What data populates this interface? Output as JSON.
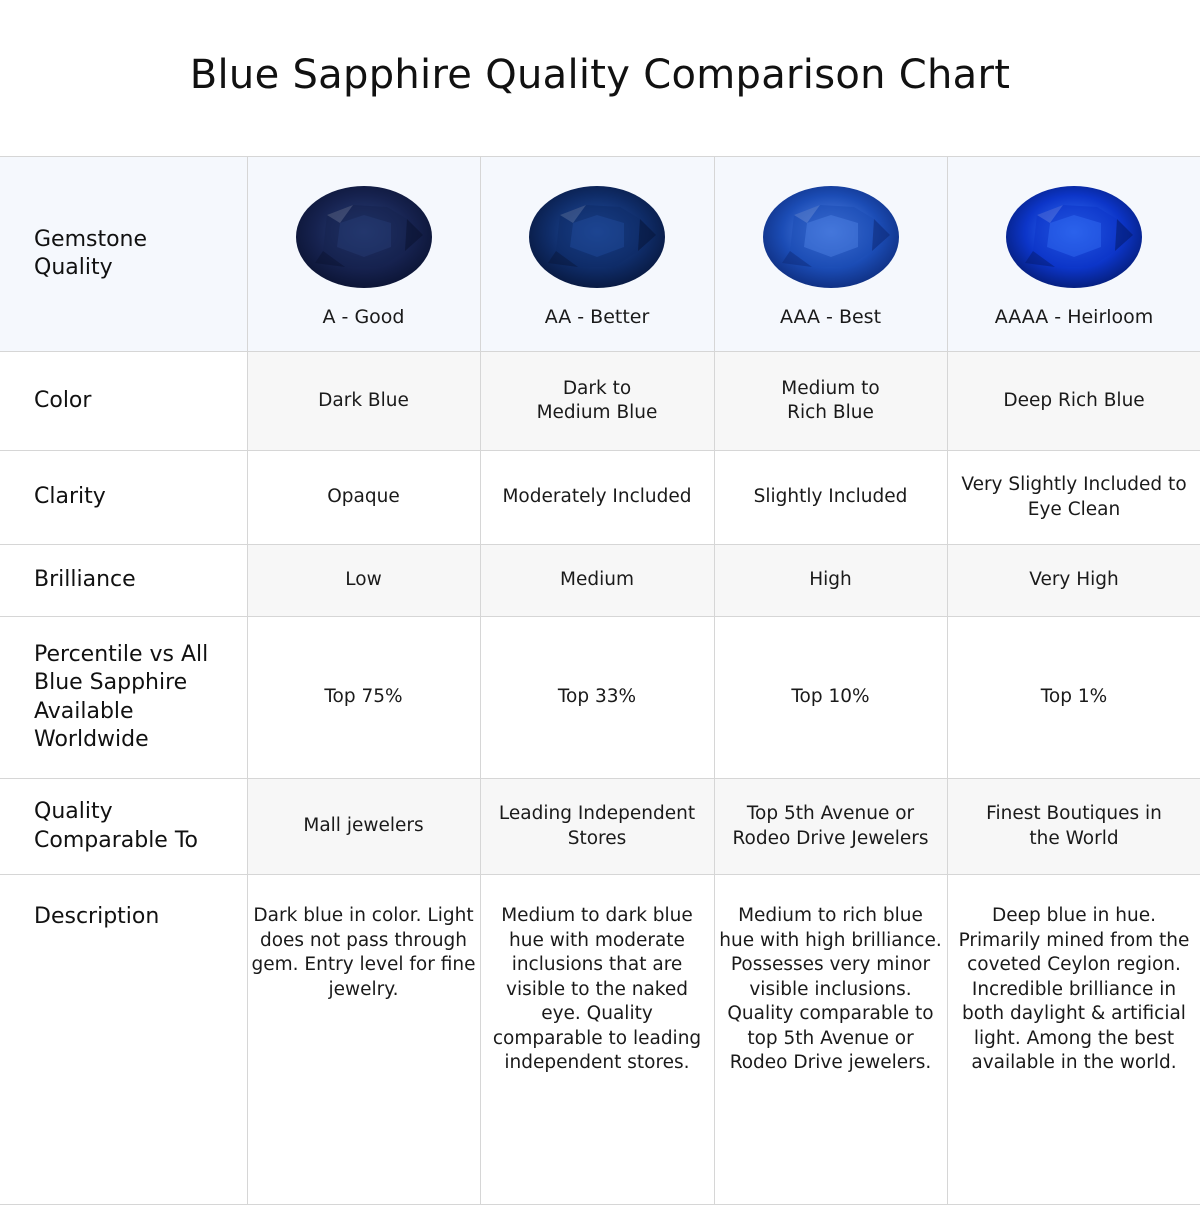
{
  "title": "Blue Sapphire Quality Comparison Chart",
  "rows": {
    "quality": {
      "label": "Gemstone Quality",
      "values": [
        "A - Good",
        "AA - Better",
        "AAA - Best",
        "AAAA - Heirloom"
      ]
    },
    "color": {
      "label": "Color",
      "values": [
        "Dark Blue",
        "Dark to Medium Blue",
        "Medium to Rich Blue",
        "Deep Rich Blue"
      ]
    },
    "clarity": {
      "label": "Clarity",
      "values": [
        "Opaque",
        "Moderately Included",
        "Slightly Included",
        "Very Slightly Included to Eye Clean"
      ]
    },
    "brilliance": {
      "label": "Brilliance",
      "values": [
        "Low",
        "Medium",
        "High",
        "Very High"
      ]
    },
    "percentile": {
      "label": "Percentile vs All Blue Sapphire Available Worldwide",
      "values": [
        "Top 75%",
        "Top 33%",
        "Top 10%",
        "Top 1%"
      ]
    },
    "comparable": {
      "label": "Quality Comparable To",
      "values": [
        "Mall jewelers",
        "Leading Independent Stores",
        "Top 5th Avenue or Rodeo Drive Jewelers",
        "Finest Boutiques in the World"
      ]
    },
    "description": {
      "label": "Description",
      "values": [
        "Dark blue in color. Light does not pass through gem. Entry level for fine jewelry.",
        "Medium to dark blue hue with moderate inclusions that are visible to the naked eye. Quality comparable to leading independent stores.",
        "Medium to rich blue hue with high brilliance. Possesses very minor visible inclusions. Quality comparable to top 5th Avenue or Rodeo Drive jewelers.",
        "Deep blue in hue. Primarily mined from the coveted Ceylon region. Incredible brilliance in both daylight & artificial light. Among the best available in the world."
      ]
    }
  },
  "gem_colors": [
    {
      "base": "#16224f",
      "light": "#2b437f",
      "dark": "#0a1230"
    },
    {
      "base": "#0f2c68",
      "light": "#2453a8",
      "dark": "#07163a"
    },
    {
      "base": "#1b4cb5",
      "light": "#5c8ef0",
      "dark": "#0d2a78"
    },
    {
      "base": "#0c35c8",
      "light": "#3d7cff",
      "dark": "#041a6e"
    }
  ]
}
